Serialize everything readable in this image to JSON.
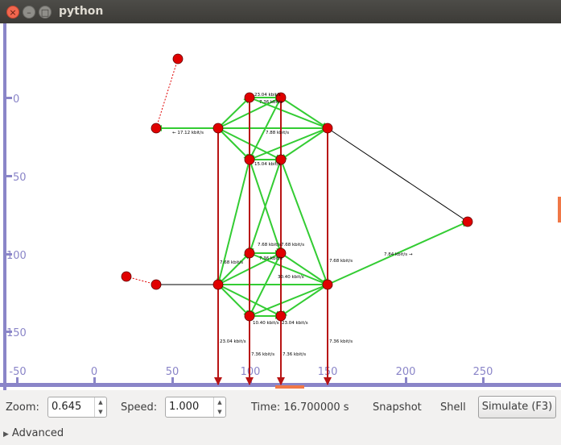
{
  "window": {
    "title": "python"
  },
  "canvas": {
    "y_ticks": [
      "0",
      "50",
      "100",
      "150"
    ],
    "x_ticks": [
      "-50",
      "0",
      "50",
      "100",
      "150",
      "200",
      "250"
    ],
    "rate_labels": {
      "r1": "7.68 kbit/s",
      "r2": "7.36 kbit/s",
      "r3": "23.04 kbit/s",
      "r4": "7.36 kbit/s",
      "r5": "7.36 kbit/s",
      "r6": "← 17.12 kbit/s",
      "r7": "7.84 kbit/s →",
      "r8": "7.68 kbit/s",
      "r9": "7.88 kbit/s",
      "r10": "15.04 kbit/s",
      "r11": "10.40 kbit/s",
      "r12": "30.40 kbit/s",
      "r13": "23.04 kbit/s",
      "r14": "7.36 kbit/s",
      "r15": "23.04 kbit/s",
      "r16": "7.36 kbit/s",
      "r17": "7.68 kbit/s",
      "r18": "7.68 kbit/s"
    }
  },
  "controls": {
    "zoom_label": "Zoom:",
    "zoom_value": "0.645",
    "speed_label": "Speed:",
    "speed_value": "1.000",
    "time_text": "Time: 16.700000 s",
    "snapshot_label": "Snapshot",
    "shell_label": "Shell",
    "simulate_label": "Simulate (F3)",
    "advanced_label": "Advanced",
    "spin_up": "▲",
    "spin_down": "▼",
    "expander": "▶"
  },
  "colors": {
    "axis": "#8a85c8",
    "node": "#e00000",
    "flow_green": "#33cc33",
    "flow_red": "#b81414",
    "link": "#000000"
  }
}
